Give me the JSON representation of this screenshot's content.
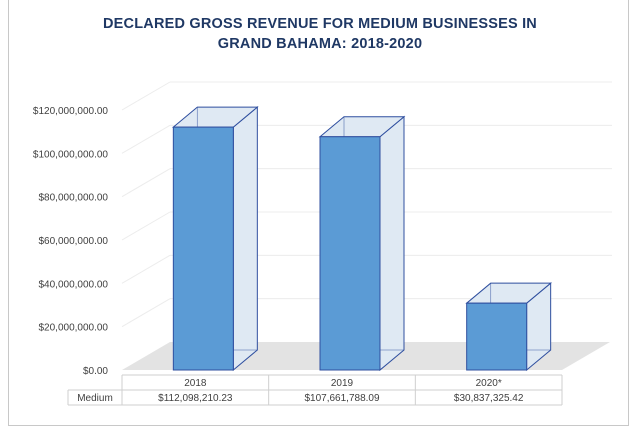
{
  "chart_data": {
    "type": "bar",
    "title_lines": [
      "DECLARED GROSS REVENUE FOR MEDIUM BUSINESSES IN",
      "GRAND BAHAMA: 2018-2020"
    ],
    "categories": [
      "2018",
      "2019",
      "2020*"
    ],
    "series": [
      {
        "name": "Medium",
        "values": [
          112098210.23,
          107661788.09,
          30837325.42
        ],
        "value_labels": [
          "$112,098,210.23",
          "$107,661,788.09",
          "$30,837,325.42"
        ]
      }
    ],
    "ylim": [
      0,
      120000000
    ],
    "y_ticks": [
      0,
      20000000,
      40000000,
      60000000,
      80000000,
      100000000,
      120000000
    ],
    "y_tick_labels": [
      "$0.00",
      "$20,000,000.00",
      "$40,000,000.00",
      "$60,000,000.00",
      "$80,000,000.00",
      "$100,000,000.00",
      "$120,000,000.00"
    ],
    "grid": true,
    "style": "3d-column",
    "data_table": true,
    "colors": {
      "bar_front": "#5b9bd5",
      "bar_side": "#dfe9f3",
      "bar_edge": "#2f4f9f",
      "floor": "#e3e3e3",
      "title": "#1f3864"
    }
  }
}
